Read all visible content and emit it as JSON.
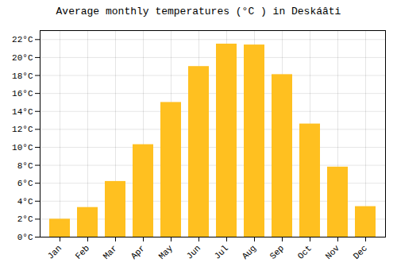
{
  "chart_data": {
    "type": "bar",
    "title": "Average monthly temperatures (°C ) in Deskáâti",
    "categories": [
      "Jan",
      "Feb",
      "Mar",
      "Apr",
      "May",
      "Jun",
      "Jul",
      "Aug",
      "Sep",
      "Oct",
      "Nov",
      "Dec"
    ],
    "values": [
      2.0,
      3.3,
      6.2,
      10.3,
      15.0,
      19.0,
      21.5,
      21.4,
      18.1,
      12.6,
      7.8,
      3.4
    ],
    "color": "#FFC020",
    "ylim": [
      0,
      23
    ],
    "yticks": [
      {
        "value": 0,
        "label": "0°C"
      },
      {
        "value": 2,
        "label": "2°C"
      },
      {
        "value": 4,
        "label": "4°C"
      },
      {
        "value": 6,
        "label": "6°C"
      },
      {
        "value": 8,
        "label": "8°C"
      },
      {
        "value": 10,
        "label": "10°C"
      },
      {
        "value": 12,
        "label": "12°C"
      },
      {
        "value": 14,
        "label": "14°C"
      },
      {
        "value": 16,
        "label": "16°C"
      },
      {
        "value": 18,
        "label": "18°C"
      },
      {
        "value": 20,
        "label": "20°C"
      },
      {
        "value": 22,
        "label": "22°C"
      }
    ],
    "grid": true
  }
}
